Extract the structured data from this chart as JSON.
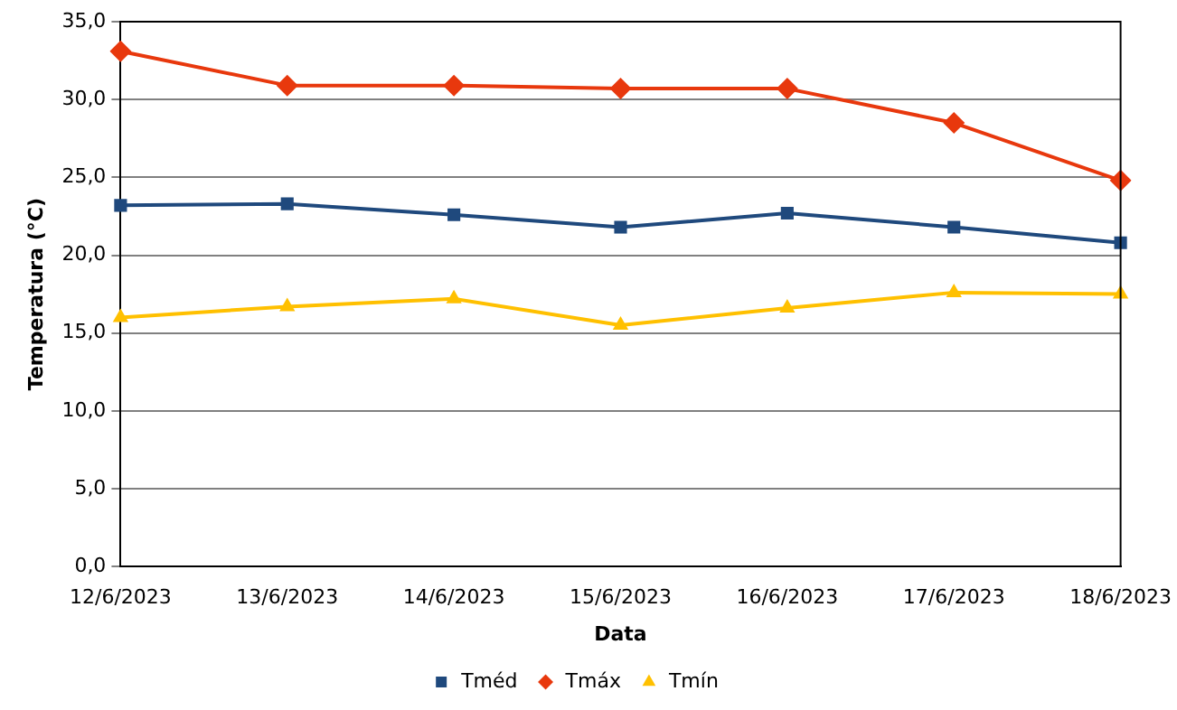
{
  "chart_data": {
    "type": "line",
    "xlabel": "Data",
    "ylabel": "Temperatura (°C)",
    "categories": [
      "12/6/2023",
      "13/6/2023",
      "14/6/2023",
      "15/6/2023",
      "16/6/2023",
      "17/6/2023",
      "18/6/2023"
    ],
    "series": [
      {
        "name": "Tméd",
        "color": "#1f497d",
        "marker": "square",
        "values": [
          23.2,
          23.3,
          22.6,
          21.8,
          22.7,
          21.8,
          20.8
        ]
      },
      {
        "name": "Tmáx",
        "color": "#e8380d",
        "marker": "diamond",
        "values": [
          33.1,
          30.9,
          30.9,
          30.7,
          30.7,
          28.5,
          24.8
        ]
      },
      {
        "name": "Tmín",
        "color": "#ffc000",
        "marker": "triangle",
        "values": [
          16.0,
          16.7,
          17.2,
          15.5,
          16.6,
          17.6,
          17.5
        ]
      }
    ],
    "ylim": [
      0,
      35
    ],
    "yticks": [
      {
        "value": 0,
        "label": "0,0"
      },
      {
        "value": 5,
        "label": "5,0"
      },
      {
        "value": 10,
        "label": "10,0"
      },
      {
        "value": 15,
        "label": "15,0"
      },
      {
        "value": 20,
        "label": "20,0"
      },
      {
        "value": 25,
        "label": "25,0"
      },
      {
        "value": 30,
        "label": "30,0"
      },
      {
        "value": 35,
        "label": "35,0"
      }
    ],
    "grid": "y",
    "legend": "bottom",
    "line_style": "solid"
  }
}
